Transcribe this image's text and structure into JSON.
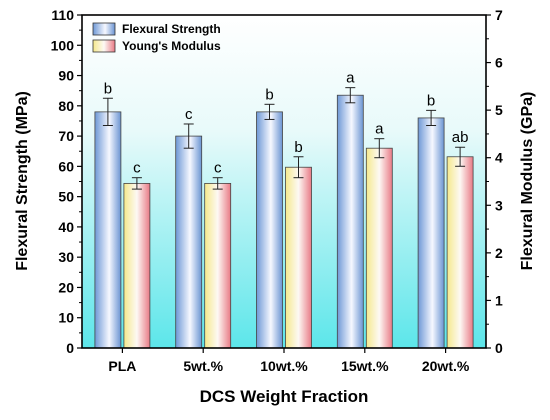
{
  "chart_data": {
    "type": "bar",
    "xlabel": "DCS Weight Fraction",
    "ylabel": "Flexural Strength (MPa)",
    "y2label": "Flexural Modulus (GPa)",
    "categories": [
      "PLA",
      "5wt.%",
      "10wt.%",
      "15wt.%",
      "20wt.%"
    ],
    "ylim": [
      0,
      110
    ],
    "y2lim": [
      0,
      7
    ],
    "yticks": [
      0,
      10,
      20,
      30,
      40,
      50,
      60,
      70,
      80,
      90,
      100,
      110
    ],
    "y2ticks": [
      0,
      1,
      2,
      3,
      4,
      5,
      6,
      7
    ],
    "legend_position": "top-left",
    "series": [
      {
        "name": "Flexural Strength",
        "axis": "left",
        "color": "#5f8bd0",
        "values": [
          78,
          70,
          78,
          83.5,
          76
        ],
        "errors": [
          4.5,
          4,
          2.5,
          2.5,
          2.5
        ],
        "labels": [
          "b",
          "c",
          "b",
          "a",
          "b"
        ]
      },
      {
        "name": "Young's Modulus",
        "axis": "right",
        "color": "#f0e08a",
        "values": [
          3.46,
          3.46,
          3.8,
          4.2,
          4.02
        ],
        "errors": [
          0.12,
          0.12,
          0.22,
          0.2,
          0.2
        ],
        "labels": [
          "c",
          "c",
          "b",
          "a",
          "ab"
        ]
      }
    ]
  }
}
